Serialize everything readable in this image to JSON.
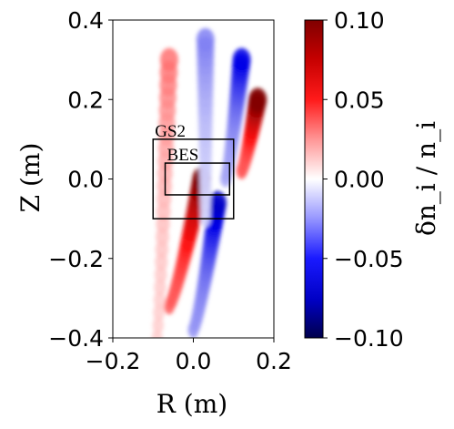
{
  "chart_data": {
    "type": "heatmap",
    "title": "",
    "xlabel": "R (m)",
    "ylabel": "Z (m)",
    "xlim": [
      -0.2,
      0.2
    ],
    "ylim": [
      -0.4,
      0.4
    ],
    "data_extent": {
      "r": [
        -0.18,
        0.2
      ],
      "z": [
        -0.4,
        0.4
      ]
    },
    "x_ticks": [
      -0.2,
      0.0,
      0.2
    ],
    "x_tick_labels": [
      "−0.2",
      "0.0",
      "0.2"
    ],
    "y_ticks": [
      0.4,
      0.2,
      0.0,
      -0.2,
      -0.4
    ],
    "y_tick_labels": [
      "0.4",
      "0.2",
      "0.0",
      "−0.2",
      "−0.4"
    ],
    "colorbar": {
      "label": "δn_i / n_i",
      "range": [
        -0.1,
        0.1
      ],
      "ticks": [
        0.1,
        0.05,
        0.0,
        -0.05,
        -0.1
      ],
      "tick_labels": [
        "0.10",
        "0.05",
        "0.00",
        "−0.05",
        "−0.10"
      ],
      "colormap": "seismic",
      "color_low": "#00004c",
      "color_mid": "#ffffff",
      "color_high": "#800000"
    },
    "regions": [
      {
        "label": "GS2",
        "r": [
          -0.1,
          0.1
        ],
        "z": [
          -0.1,
          0.1
        ]
      },
      {
        "label": "BES",
        "r": [
          -0.07,
          0.09
        ],
        "z": [
          -0.04,
          0.04
        ]
      }
    ],
    "structures": [
      {
        "sign": "positive",
        "amplitude": 0.1,
        "peak_r": 0.02,
        "peak_z": 0.0,
        "tail_r": -0.06,
        "tail_z": -0.32
      },
      {
        "sign": "positive",
        "amplitude": 0.1,
        "peak_r": 0.16,
        "peak_z": 0.2,
        "tail_r": 0.12,
        "tail_z": 0.02
      },
      {
        "sign": "negative",
        "amplitude": -0.06,
        "peak_r": 0.06,
        "peak_z": -0.06,
        "tail_r": 0.0,
        "tail_z": -0.38
      },
      {
        "sign": "negative",
        "amplitude": -0.05,
        "peak_r": 0.12,
        "peak_z": 0.3,
        "tail_r": 0.08,
        "tail_z": 0.0
      },
      {
        "sign": "positive",
        "amplitude": 0.03,
        "peak_r": -0.06,
        "peak_z": 0.3,
        "tail_r": -0.09,
        "tail_z": -0.4
      },
      {
        "sign": "negative",
        "amplitude": -0.025,
        "peak_r": 0.03,
        "peak_z": 0.35,
        "tail_r": 0.03,
        "tail_z": -0.1
      }
    ]
  }
}
